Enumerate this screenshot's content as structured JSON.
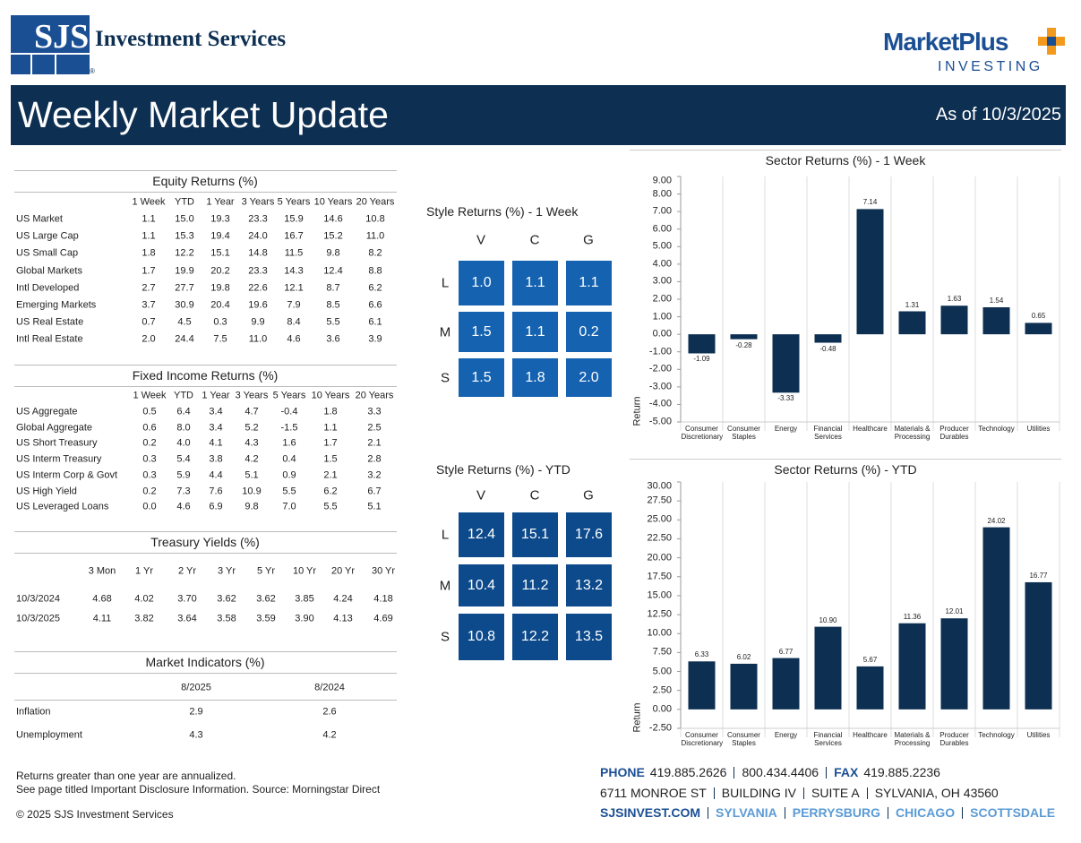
{
  "header": {
    "logo": "SJS",
    "company": "Investment Services",
    "registered": "®",
    "brand": "MarketPlus",
    "brand_sub": "INVESTING",
    "title": "Weekly Market Update",
    "as_of": "As of 10/3/2025"
  },
  "equity": {
    "title": "Equity Returns (%)",
    "columns": [
      "1 Week",
      "YTD",
      "1 Year",
      "3 Years",
      "5 Years",
      "10 Years",
      "20 Years"
    ],
    "rows": [
      {
        "label": "US Market",
        "values": [
          "1.1",
          "15.0",
          "19.3",
          "23.3",
          "15.9",
          "14.6",
          "10.8"
        ]
      },
      {
        "label": "US Large Cap",
        "values": [
          "1.1",
          "15.3",
          "19.4",
          "24.0",
          "16.7",
          "15.2",
          "11.0"
        ]
      },
      {
        "label": "US Small Cap",
        "values": [
          "1.8",
          "12.2",
          "15.1",
          "14.8",
          "11.5",
          "9.8",
          "8.2"
        ]
      },
      {
        "label": "Global Markets",
        "values": [
          "1.7",
          "19.9",
          "20.2",
          "23.3",
          "14.3",
          "12.4",
          "8.8"
        ]
      },
      {
        "label": "Intl Developed",
        "values": [
          "2.7",
          "27.7",
          "19.8",
          "22.6",
          "12.1",
          "8.7",
          "6.2"
        ]
      },
      {
        "label": "Emerging Markets",
        "values": [
          "3.7",
          "30.9",
          "20.4",
          "19.6",
          "7.9",
          "8.5",
          "6.6"
        ]
      },
      {
        "label": "US Real Estate",
        "values": [
          "0.7",
          "4.5",
          "0.3",
          "9.9",
          "8.4",
          "5.5",
          "6.1"
        ]
      },
      {
        "label": "Intl Real Estate",
        "values": [
          "2.0",
          "24.4",
          "7.5",
          "11.0",
          "4.6",
          "3.6",
          "3.9"
        ]
      }
    ]
  },
  "fixed_income": {
    "title": "Fixed Income Returns (%)",
    "columns": [
      "1 Week",
      "YTD",
      "1 Year",
      "3 Years",
      "5 Years",
      "10 Years",
      "20 Years"
    ],
    "rows": [
      {
        "label": "US Aggregate",
        "values": [
          "0.5",
          "6.4",
          "3.4",
          "4.7",
          "-0.4",
          "1.8",
          "3.3"
        ]
      },
      {
        "label": "Global Aggregate",
        "values": [
          "0.6",
          "8.0",
          "3.4",
          "5.2",
          "-1.5",
          "1.1",
          "2.5"
        ]
      },
      {
        "label": "US Short Treasury",
        "values": [
          "0.2",
          "4.0",
          "4.1",
          "4.3",
          "1.6",
          "1.7",
          "2.1"
        ]
      },
      {
        "label": "US Interm Treasury",
        "values": [
          "0.3",
          "5.4",
          "3.8",
          "4.2",
          "0.4",
          "1.5",
          "2.8"
        ]
      },
      {
        "label": "US Interm Corp & Govt",
        "values": [
          "0.3",
          "5.9",
          "4.4",
          "5.1",
          "0.9",
          "2.1",
          "3.2"
        ]
      },
      {
        "label": "US High Yield",
        "values": [
          "0.2",
          "7.3",
          "7.6",
          "10.9",
          "5.5",
          "6.2",
          "6.7"
        ]
      },
      {
        "label": "US Leveraged Loans",
        "values": [
          "0.0",
          "4.6",
          "6.9",
          "9.8",
          "7.0",
          "5.5",
          "5.1"
        ]
      }
    ]
  },
  "treasury": {
    "title": "Treasury Yields (%)",
    "columns": [
      "3 Mon",
      "1 Yr",
      "2 Yr",
      "3 Yr",
      "5 Yr",
      "10 Yr",
      "20 Yr",
      "30 Yr"
    ],
    "rows": [
      {
        "label": "10/3/2024",
        "values": [
          "4.68",
          "4.02",
          "3.70",
          "3.62",
          "3.62",
          "3.85",
          "4.24",
          "4.18"
        ]
      },
      {
        "label": "10/3/2025",
        "values": [
          "4.11",
          "3.82",
          "3.64",
          "3.58",
          "3.59",
          "3.90",
          "4.13",
          "4.69"
        ]
      }
    ]
  },
  "indicators": {
    "title": "Market Indicators (%)",
    "columns": [
      "8/2025",
      "8/2024"
    ],
    "rows": [
      {
        "label": "Inflation",
        "values": [
          "2.9",
          "2.6"
        ]
      },
      {
        "label": "Unemployment",
        "values": [
          "4.3",
          "4.2"
        ]
      }
    ]
  },
  "style_week": {
    "title": "Style Returns (%)  - 1 Week",
    "columns": [
      "V",
      "C",
      "G"
    ],
    "rows": [
      "L",
      "M",
      "S"
    ],
    "color": "#1462b0",
    "values": [
      [
        "1.0",
        "1.1",
        "1.1"
      ],
      [
        "1.5",
        "1.1",
        "0.2"
      ],
      [
        "1.5",
        "1.8",
        "2.0"
      ]
    ]
  },
  "style_ytd": {
    "title": "Style Returns (%)  - YTD",
    "columns": [
      "V",
      "C",
      "G"
    ],
    "rows": [
      "L",
      "M",
      "S"
    ],
    "color": "#0c4a8c",
    "values": [
      [
        "12.4",
        "15.1",
        "17.6"
      ],
      [
        "10.4",
        "11.2",
        "13.2"
      ],
      [
        "10.8",
        "12.2",
        "13.5"
      ]
    ]
  },
  "sector_week": {
    "type": "bar",
    "title": "Sector Returns (%)  - 1 Week",
    "y_label": "Return",
    "color": "#0d2f52",
    "categories": [
      "Consumer Discretionary",
      "Consumer Staples",
      "Energy",
      "Financial Services",
      "Healthcare",
      "Materials & Processing",
      "Producer Durables",
      "Technology",
      "Utilities"
    ],
    "values": [
      -1.09,
      -0.28,
      -3.33,
      -0.48,
      7.14,
      1.31,
      1.63,
      1.54,
      0.65
    ],
    "value_labels": [
      "-1.09",
      "-0.28",
      "-3.33",
      "-0.48",
      "7.14",
      "1.31",
      "1.63",
      "1.54",
      "0.65"
    ],
    "ylim": [
      -5,
      9
    ],
    "yticks": [
      {
        "value": 9,
        "label": "9.00"
      },
      {
        "value": 8,
        "label": "8.00"
      },
      {
        "value": 7,
        "label": "7.00"
      },
      {
        "value": 6,
        "label": "6.00"
      },
      {
        "value": 5,
        "label": "5.00"
      },
      {
        "value": 4,
        "label": "4.00"
      },
      {
        "value": 3,
        "label": "3.00"
      },
      {
        "value": 2,
        "label": "2.00"
      },
      {
        "value": 1,
        "label": "1.00"
      },
      {
        "value": 0,
        "label": "0.00"
      },
      {
        "value": -1,
        "label": "-1.00"
      },
      {
        "value": -2,
        "label": "-2.00"
      },
      {
        "value": -3,
        "label": "-3.00"
      },
      {
        "value": -4,
        "label": "-4.00"
      },
      {
        "value": -5,
        "label": "-5.00"
      }
    ]
  },
  "sector_ytd": {
    "type": "bar",
    "title": "Sector Returns (%)  - YTD",
    "y_label": "Return",
    "color": "#0d2f52",
    "categories": [
      "Consumer Discretionary",
      "Consumer Staples",
      "Energy",
      "Financial Services",
      "Healthcare",
      "Materials & Processing",
      "Producer Durables",
      "Technology",
      "Utilities"
    ],
    "values": [
      6.33,
      6.02,
      6.77,
      10.9,
      5.67,
      11.36,
      12.01,
      24.02,
      16.77
    ],
    "value_labels": [
      "6.33",
      "6.02",
      "6.77",
      "10.90",
      "5.67",
      "11.36",
      "12.01",
      "24.02",
      "16.77"
    ],
    "ylim": [
      -2.5,
      30
    ],
    "yticks": [
      {
        "value": 30,
        "label": "30.00"
      },
      {
        "value": 27.5,
        "label": "27.50"
      },
      {
        "value": 25,
        "label": "25.00"
      },
      {
        "value": 22.5,
        "label": "22.50"
      },
      {
        "value": 20,
        "label": "20.00"
      },
      {
        "value": 17.5,
        "label": "17.50"
      },
      {
        "value": 15,
        "label": "15.00"
      },
      {
        "value": 12.5,
        "label": "12.50"
      },
      {
        "value": 10,
        "label": "10.00"
      },
      {
        "value": 7.5,
        "label": "7.50"
      },
      {
        "value": 5,
        "label": "5.00"
      },
      {
        "value": 2.5,
        "label": "2.50"
      },
      {
        "value": 0,
        "label": "0.00"
      },
      {
        "value": -2.5,
        "label": "-2.50"
      }
    ]
  },
  "footer": {
    "notes": [
      "Returns greater than one year are annualized.",
      "See page titled Important Disclosure Information. Source: Morningstar Direct"
    ],
    "copyright": "© 2025 SJS Investment Services",
    "phone_label": "PHONE",
    "phones": [
      "419.885.2626",
      "800.434.4406"
    ],
    "fax_label": "FAX",
    "fax": "419.885.2236",
    "address": [
      "6711 MONROE ST",
      "BUILDING IV",
      "SUITE A",
      "SYLVANIA, OH 43560"
    ],
    "links": [
      "SJSINVEST.COM",
      "SYLVANIA",
      "PERRYSBURG",
      "CHICAGO",
      "SCOTTSDALE"
    ]
  }
}
